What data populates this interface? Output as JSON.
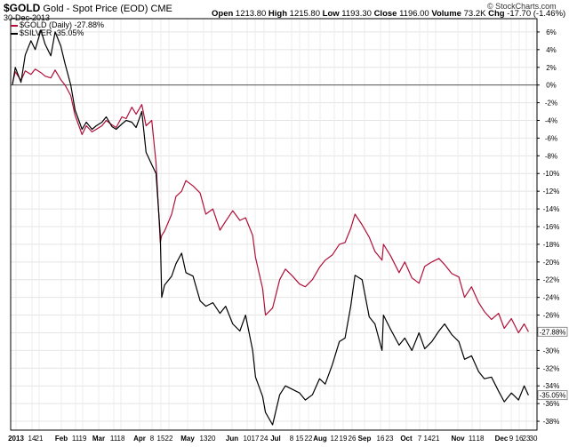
{
  "header": {
    "symbol": "$GOLD",
    "description": "Gold - Spot Price (EOD)",
    "exchange": "CME",
    "date": "30-Dec-2013",
    "brand": "© StockCharts.com",
    "quote": {
      "open_label": "Open",
      "open": "1213.80",
      "high_label": "High",
      "high": "1215.80",
      "low_label": "Low",
      "low": "1193.30",
      "close_label": "Close",
      "close": "1196.00",
      "volume_label": "Volume",
      "volume": "73.2K",
      "chg_label": "Chg",
      "chg": "-17.70 (-1.46%)"
    }
  },
  "chart_data": {
    "type": "line",
    "grid": true,
    "legend_position": "top-left",
    "y_axis_position": "right",
    "ylim": [
      -39,
      7.5
    ],
    "y_ticks": [
      6,
      4,
      2,
      0,
      -2,
      -4,
      -6,
      -8,
      -10,
      -12,
      -14,
      -16,
      -18,
      -20,
      -22,
      -24,
      -26,
      -28,
      -30,
      -32,
      -34,
      -36,
      -38
    ],
    "y_tick_labels": [
      "6%",
      "4%",
      "2%",
      "0%",
      "-2%",
      "-4%",
      "-6%",
      "-8%",
      "-10%",
      "-12%",
      "-14%",
      "-16%",
      "-18%",
      "-20%",
      "-22%",
      "-24%",
      "-26%",
      "-28%",
      "-30%",
      "-32%",
      "-34%",
      "-36%",
      "-38%"
    ],
    "x_tick_labels": [
      "2013",
      "14",
      "21",
      "Feb",
      "11",
      "19",
      "Mar",
      "11",
      "18",
      "Apr",
      "8",
      "15",
      "22",
      "May",
      "13",
      "20",
      "Jun",
      "10",
      "17",
      "24",
      "Jul",
      "8",
      "15",
      "22",
      "Aug",
      "12",
      "19",
      "26",
      "Sep",
      "16",
      "23",
      "Oct",
      "7",
      "14",
      "21",
      "Nov",
      "11",
      "18",
      "Dec",
      "9",
      "16",
      "23",
      "30"
    ],
    "series": [
      {
        "name": "$GOLD (Daily) -27.88%",
        "color": "#b0103a",
        "last_label": "-27.88%",
        "x": [
          "2013-01-01",
          "2013-01-03",
          "2013-01-07",
          "2013-01-10",
          "2013-01-14",
          "2013-01-17",
          "2013-01-21",
          "2013-01-24",
          "2013-01-28",
          "2013-01-31",
          "2013-02-04",
          "2013-02-07",
          "2013-02-11",
          "2013-02-14",
          "2013-02-19",
          "2013-02-22",
          "2013-02-26",
          "2013-03-01",
          "2013-03-05",
          "2013-03-08",
          "2013-03-12",
          "2013-03-15",
          "2013-03-19",
          "2013-03-22",
          "2013-03-26",
          "2013-03-29",
          "2013-04-02",
          "2013-04-05",
          "2013-04-09",
          "2013-04-12",
          "2013-04-15",
          "2013-04-16",
          "2013-04-18",
          "2013-04-23",
          "2013-04-26",
          "2013-04-30",
          "2013-05-03",
          "2013-05-08",
          "2013-05-13",
          "2013-05-17",
          "2013-05-22",
          "2013-05-27",
          "2013-05-31",
          "2013-06-05",
          "2013-06-10",
          "2013-06-14",
          "2013-06-19",
          "2013-06-21",
          "2013-06-26",
          "2013-06-28",
          "2013-07-03",
          "2013-07-08",
          "2013-07-12",
          "2013-07-17",
          "2013-07-22",
          "2013-07-26",
          "2013-07-31",
          "2013-08-05",
          "2013-08-09",
          "2013-08-14",
          "2013-08-19",
          "2013-08-23",
          "2013-08-27",
          "2013-08-30",
          "2013-09-04",
          "2013-09-09",
          "2013-09-13",
          "2013-09-18",
          "2013-09-19",
          "2013-09-24",
          "2013-09-30",
          "2013-10-04",
          "2013-10-09",
          "2013-10-14",
          "2013-10-18",
          "2013-10-23",
          "2013-10-28",
          "2013-11-01",
          "2013-11-06",
          "2013-11-11",
          "2013-11-15",
          "2013-11-20",
          "2013-11-25",
          "2013-11-29",
          "2013-12-04",
          "2013-12-09",
          "2013-12-13",
          "2013-12-18",
          "2013-12-23",
          "2013-12-27",
          "2013-12-30"
        ],
        "values": [
          0.2,
          1.5,
          0.5,
          1.6,
          1.2,
          1.8,
          1.4,
          1.0,
          0.8,
          1.7,
          0.6,
          0.0,
          -1.2,
          -3.4,
          -5.6,
          -4.6,
          -5.3,
          -5.0,
          -4.6,
          -4.0,
          -4.5,
          -4.8,
          -3.6,
          -3.8,
          -2.5,
          -3.3,
          -2.2,
          -4.6,
          -4.0,
          -8.8,
          -17.8,
          -17.0,
          -16.5,
          -14.6,
          -12.6,
          -12.0,
          -10.8,
          -11.4,
          -12.2,
          -14.6,
          -14.0,
          -16.4,
          -15.4,
          -14.2,
          -15.3,
          -15.0,
          -17.0,
          -19.5,
          -23.0,
          -26.0,
          -25.2,
          -22.0,
          -20.8,
          -21.6,
          -22.5,
          -22.8,
          -22.0,
          -20.6,
          -19.8,
          -19.2,
          -18.0,
          -17.8,
          -16.2,
          -14.6,
          -15.8,
          -17.2,
          -18.8,
          -19.8,
          -18.0,
          -19.3,
          -21.2,
          -20.0,
          -21.8,
          -22.4,
          -20.5,
          -20.0,
          -19.6,
          -20.3,
          -21.3,
          -21.7,
          -24.0,
          -22.8,
          -24.6,
          -25.6,
          -26.5,
          -25.8,
          -27.5,
          -26.4,
          -28.0,
          -27.0,
          -27.88
        ]
      },
      {
        "name": "$SILVER -35.05%",
        "color": "#000000",
        "last_label": "-35.05%",
        "x": [
          "2013-01-01",
          "2013-01-03",
          "2013-01-07",
          "2013-01-10",
          "2013-01-14",
          "2013-01-17",
          "2013-01-21",
          "2013-01-24",
          "2013-01-28",
          "2013-01-31",
          "2013-02-04",
          "2013-02-07",
          "2013-02-11",
          "2013-02-14",
          "2013-02-19",
          "2013-02-22",
          "2013-02-26",
          "2013-03-01",
          "2013-03-05",
          "2013-03-08",
          "2013-03-12",
          "2013-03-15",
          "2013-03-19",
          "2013-03-22",
          "2013-03-26",
          "2013-03-29",
          "2013-04-02",
          "2013-04-05",
          "2013-04-09",
          "2013-04-12",
          "2013-04-15",
          "2013-04-16",
          "2013-04-18",
          "2013-04-23",
          "2013-04-26",
          "2013-04-30",
          "2013-05-03",
          "2013-05-08",
          "2013-05-13",
          "2013-05-17",
          "2013-05-22",
          "2013-05-27",
          "2013-05-31",
          "2013-06-05",
          "2013-06-10",
          "2013-06-14",
          "2013-06-19",
          "2013-06-21",
          "2013-06-26",
          "2013-06-28",
          "2013-07-03",
          "2013-07-08",
          "2013-07-12",
          "2013-07-17",
          "2013-07-22",
          "2013-07-26",
          "2013-07-31",
          "2013-08-05",
          "2013-08-09",
          "2013-08-14",
          "2013-08-19",
          "2013-08-23",
          "2013-08-27",
          "2013-08-30",
          "2013-09-04",
          "2013-09-09",
          "2013-09-13",
          "2013-09-18",
          "2013-09-19",
          "2013-09-24",
          "2013-09-30",
          "2013-10-04",
          "2013-10-09",
          "2013-10-14",
          "2013-10-18",
          "2013-10-23",
          "2013-10-28",
          "2013-11-01",
          "2013-11-06",
          "2013-11-11",
          "2013-11-15",
          "2013-11-20",
          "2013-11-25",
          "2013-11-29",
          "2013-12-04",
          "2013-12-09",
          "2013-12-13",
          "2013-12-18",
          "2013-12-23",
          "2013-12-27",
          "2013-12-30"
        ],
        "values": [
          0.0,
          2.0,
          0.3,
          3.4,
          5.0,
          4.0,
          6.2,
          4.6,
          3.3,
          6.0,
          4.4,
          2.4,
          0.0,
          -2.8,
          -5.0,
          -4.2,
          -5.0,
          -4.6,
          -4.2,
          -3.6,
          -4.7,
          -5.0,
          -4.4,
          -4.0,
          -4.2,
          -4.8,
          -3.0,
          -7.6,
          -9.0,
          -10.0,
          -17.0,
          -24.0,
          -22.6,
          -21.6,
          -20.2,
          -19.0,
          -21.2,
          -21.6,
          -24.4,
          -25.0,
          -24.6,
          -25.8,
          -25.0,
          -27.0,
          -27.8,
          -26.0,
          -30.0,
          -33.0,
          -35.2,
          -37.0,
          -38.4,
          -35.0,
          -34.0,
          -34.4,
          -34.8,
          -35.6,
          -35.0,
          -33.2,
          -33.8,
          -31.6,
          -29.0,
          -28.6,
          -25.0,
          -21.5,
          -22.0,
          -26.2,
          -27.0,
          -30.0,
          -26.0,
          -27.6,
          -29.4,
          -28.6,
          -30.0,
          -28.0,
          -29.8,
          -29.0,
          -27.8,
          -27.0,
          -28.2,
          -29.0,
          -31.0,
          -30.6,
          -32.4,
          -33.2,
          -33.0,
          -34.6,
          -35.8,
          -34.8,
          -35.6,
          -34.0,
          -35.05
        ]
      }
    ]
  }
}
